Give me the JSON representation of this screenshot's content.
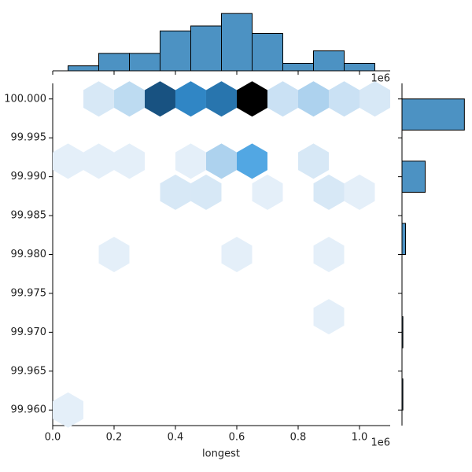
{
  "chart_data": [
    {
      "type": "hexbin",
      "xlabel": "longest",
      "x_offset_label": "1e6",
      "x": [
        0.15,
        0.25,
        0.35,
        0.45,
        0.55,
        0.65,
        0.75,
        0.85,
        0.95,
        1.05,
        0.05,
        0.15,
        0.25,
        0.45,
        0.55,
        0.65,
        0.85,
        0.4,
        0.5,
        0.7,
        0.9,
        1.0,
        0.2,
        0.6,
        0.9,
        0.9,
        0.05
      ],
      "y": [
        100.0,
        100.0,
        100.0,
        100.0,
        100.0,
        100.0,
        100.0,
        100.0,
        100.0,
        100.0,
        99.992,
        99.992,
        99.992,
        99.992,
        99.992,
        99.992,
        99.992,
        99.988,
        99.988,
        99.988,
        99.988,
        99.988,
        99.98,
        99.98,
        99.98,
        99.972,
        99.96
      ],
      "values": [
        2,
        4,
        13,
        10,
        11,
        16,
        3,
        5,
        3,
        2,
        1,
        1,
        1,
        1,
        5,
        8,
        2,
        2,
        2,
        1,
        2,
        1,
        1,
        1,
        1,
        1,
        1
      ],
      "color": "#1f77b4",
      "xlim": [
        0,
        1.1
      ],
      "ylim": [
        99.958,
        100.002
      ],
      "xticks": [
        {
          "value": 0,
          "label": "0.0"
        },
        {
          "value": 0.2,
          "label": "0.2"
        },
        {
          "value": 0.4,
          "label": "0.4"
        },
        {
          "value": 0.6,
          "label": "0.6"
        },
        {
          "value": 0.8,
          "label": "0.8"
        },
        {
          "value": 1.0,
          "label": "1.0"
        }
      ],
      "yticks": [
        {
          "value": 99.96,
          "label": "99.960"
        },
        {
          "value": 99.965,
          "label": "99.965"
        },
        {
          "value": 99.97,
          "label": "99.970"
        },
        {
          "value": 99.975,
          "label": "99.975"
        },
        {
          "value": 99.98,
          "label": "99.980"
        },
        {
          "value": 99.985,
          "label": "99.985"
        },
        {
          "value": 99.99,
          "label": "99.990"
        },
        {
          "value": 99.995,
          "label": "99.995"
        },
        {
          "value": 100.0,
          "label": "100.000"
        }
      ]
    },
    {
      "type": "histogram",
      "orientation": "vertical",
      "x_offset_label": "1e6",
      "bins": [
        0.05,
        0.15,
        0.25,
        0.35,
        0.45,
        0.55,
        0.65,
        0.75,
        0.85,
        0.95,
        1.05
      ],
      "values": [
        2,
        7,
        7,
        16,
        18,
        23,
        15,
        3,
        8,
        3
      ],
      "color": "#4c92c3",
      "xlim": [
        0,
        1.1
      ],
      "ylim": [
        0,
        24
      ]
    },
    {
      "type": "histogram",
      "orientation": "horizontal",
      "bins": [
        99.96,
        99.964,
        99.968,
        99.972,
        99.976,
        99.98,
        99.984,
        99.988,
        99.992,
        99.996,
        100.0
      ],
      "values": [
        1,
        0,
        1,
        0,
        0,
        4,
        0,
        26,
        0,
        70
      ],
      "color": "#4c92c3",
      "xlim": [
        0,
        75
      ],
      "ylim": [
        99.958,
        100.002
      ]
    }
  ]
}
